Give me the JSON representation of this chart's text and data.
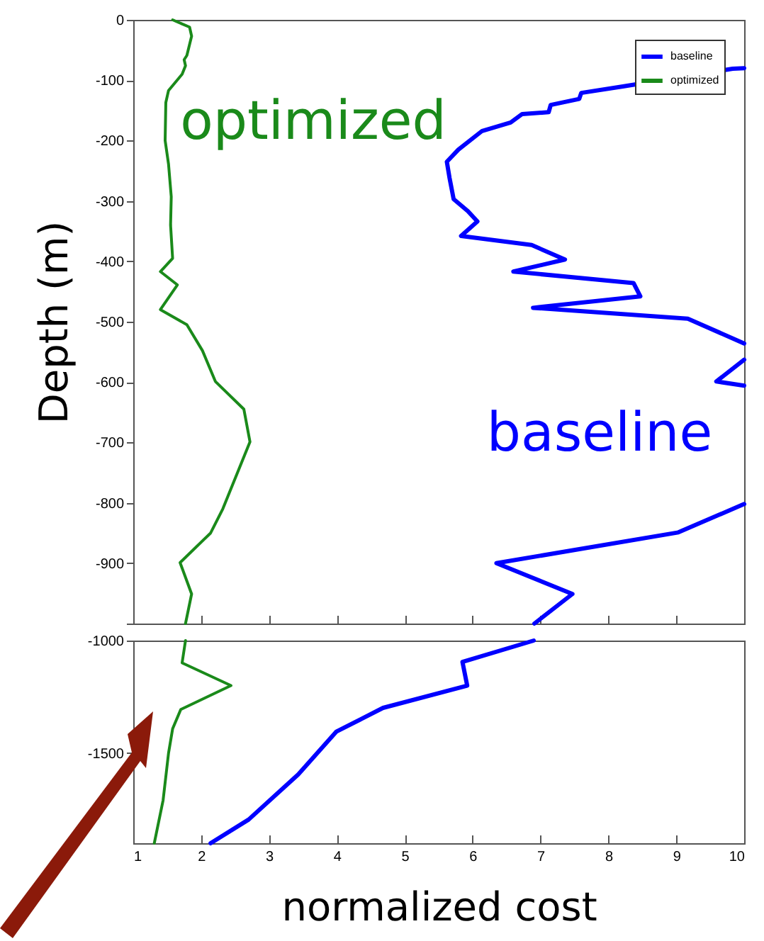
{
  "chart_data": [
    {
      "type": "line",
      "ylabel": "Depth (m)",
      "xlim": [
        1,
        10
      ],
      "xticks": [
        1,
        2,
        3,
        4,
        5,
        6,
        7,
        8,
        9,
        10
      ],
      "ylim": [
        -1000,
        0
      ],
      "yticks": [
        0,
        -100,
        -200,
        -300,
        -400,
        -500,
        -600,
        -700,
        -800,
        -900,
        {
          "value": -1000,
          "label": null
        }
      ],
      "tick_labels": "y",
      "legend": "top right",
      "grid": false,
      "marker": "none",
      "line_style": "solid",
      "series": [
        {
          "name": "baseline",
          "color": "#0000ff",
          "x": [
            10,
            9.83,
            8.23,
            7.6,
            7.57,
            7.15,
            7.12,
            6.73,
            6.56,
            6.14,
            5.79,
            5.62,
            5.66,
            5.72,
            5.93,
            6.07,
            5.83,
            6.87,
            7.36,
            6.6,
            8.37,
            8.47,
            6.89,
            9.17,
            10,
            null,
            10,
            9.59,
            10,
            null,
            10,
            9.03,
            6.35,
            7.47,
            6.91
          ],
          "values": [
            -80,
            -81,
            -110,
            -121,
            -131,
            -141,
            -153,
            -156,
            -170,
            -184,
            -215,
            -235,
            -262,
            -297,
            -317,
            -334,
            -358,
            -373,
            -397,
            -417,
            -436,
            -458,
            -477,
            -495,
            -536,
            null,
            -563,
            -599,
            -606,
            null,
            -802,
            -849,
            -900,
            -951,
            -1000
          ]
        },
        {
          "name": "optimized",
          "color": "#1a8a1a",
          "x": [
            1.58,
            1.83,
            1.86,
            1.79,
            1.75,
            1.77,
            1.72,
            1.52,
            1.48,
            1.47,
            1.52,
            1.56,
            1.55,
            1.58,
            1.4,
            1.65,
            1.4,
            1.79,
            2.02,
            2.21,
            2.63,
            2.72,
            2.32,
            2.14,
            1.69,
            1.86,
            1.77
          ],
          "values": [
            0,
            -12,
            -27,
            -59,
            -66,
            -76,
            -90,
            -117,
            -137,
            -200,
            -239,
            -293,
            -340,
            -395,
            -417,
            -439,
            -480,
            -505,
            -548,
            -599,
            -645,
            -699,
            -810,
            -850,
            -899,
            -951,
            -1000
          ]
        }
      ],
      "annotations": [
        "baseline",
        "optimized"
      ]
    },
    {
      "type": "line",
      "xlabel": "normalized cost",
      "xlim": [
        1,
        10
      ],
      "xticks": [
        1,
        2,
        3,
        4,
        5,
        6,
        7,
        8,
        9,
        10
      ],
      "ylim": [
        -1900,
        -1000
      ],
      "yticks": [
        -1000,
        -1500
      ],
      "grid": false,
      "marker": "none",
      "line_style": "solid",
      "series": [
        {
          "color": "#0000ff",
          "x": [
            6.9,
            5.85,
            5.92,
            4.68,
            3.99,
            3.43,
            2.7,
            2.14
          ],
          "values": [
            -1000,
            -1095,
            -1200,
            -1299,
            -1405,
            -1595,
            -1795,
            -1900
          ]
        },
        {
          "color": "#1a8a1a",
          "x": [
            1.77,
            1.72,
            2.44,
            1.7,
            1.58,
            1.52,
            1.44,
            1.31
          ],
          "values": [
            -1000,
            -1099,
            -1200,
            -1306,
            -1392,
            -1500,
            -1709,
            -1900
          ]
        }
      ]
    }
  ]
}
